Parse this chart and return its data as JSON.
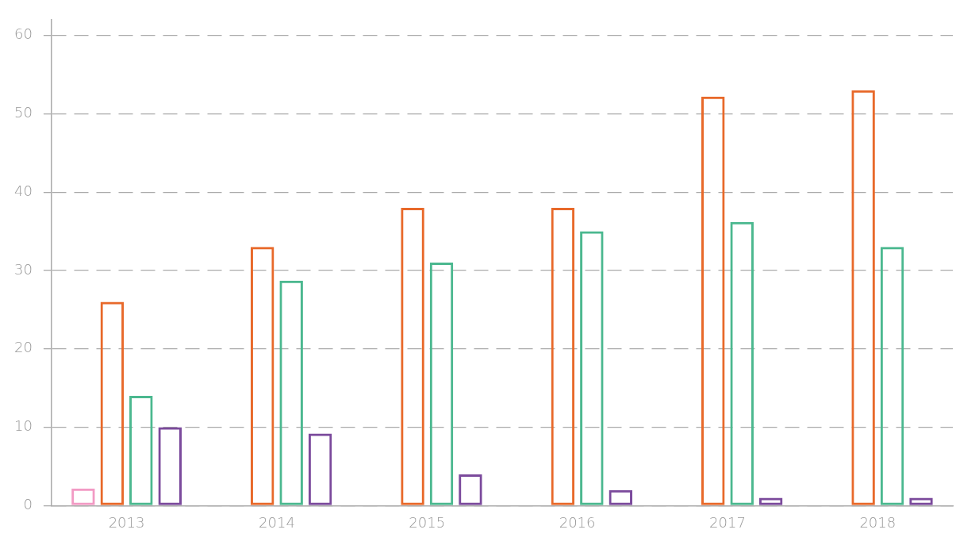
{
  "chart_data": {
    "type": "bar",
    "categories": [
      "2013",
      "2014",
      "2015",
      "2016",
      "2017",
      "2018"
    ],
    "series": [
      {
        "color": "#f29ac4",
        "values": [
          2.2,
          null,
          null,
          null,
          null,
          null
        ]
      },
      {
        "color": "#e8692a",
        "values": [
          26,
          33,
          38,
          38,
          52.2,
          53
        ]
      },
      {
        "color": "#4bb88f",
        "values": [
          14,
          28.7,
          31,
          35,
          36.2,
          33
        ]
      },
      {
        "color": "#7b4a9c",
        "values": [
          10,
          9.2,
          4,
          2,
          1,
          1
        ]
      }
    ],
    "ylim": [
      0,
      62
    ],
    "yticks": [
      0,
      10,
      20,
      30,
      40,
      50,
      60
    ],
    "grid": "y",
    "legend": false
  }
}
